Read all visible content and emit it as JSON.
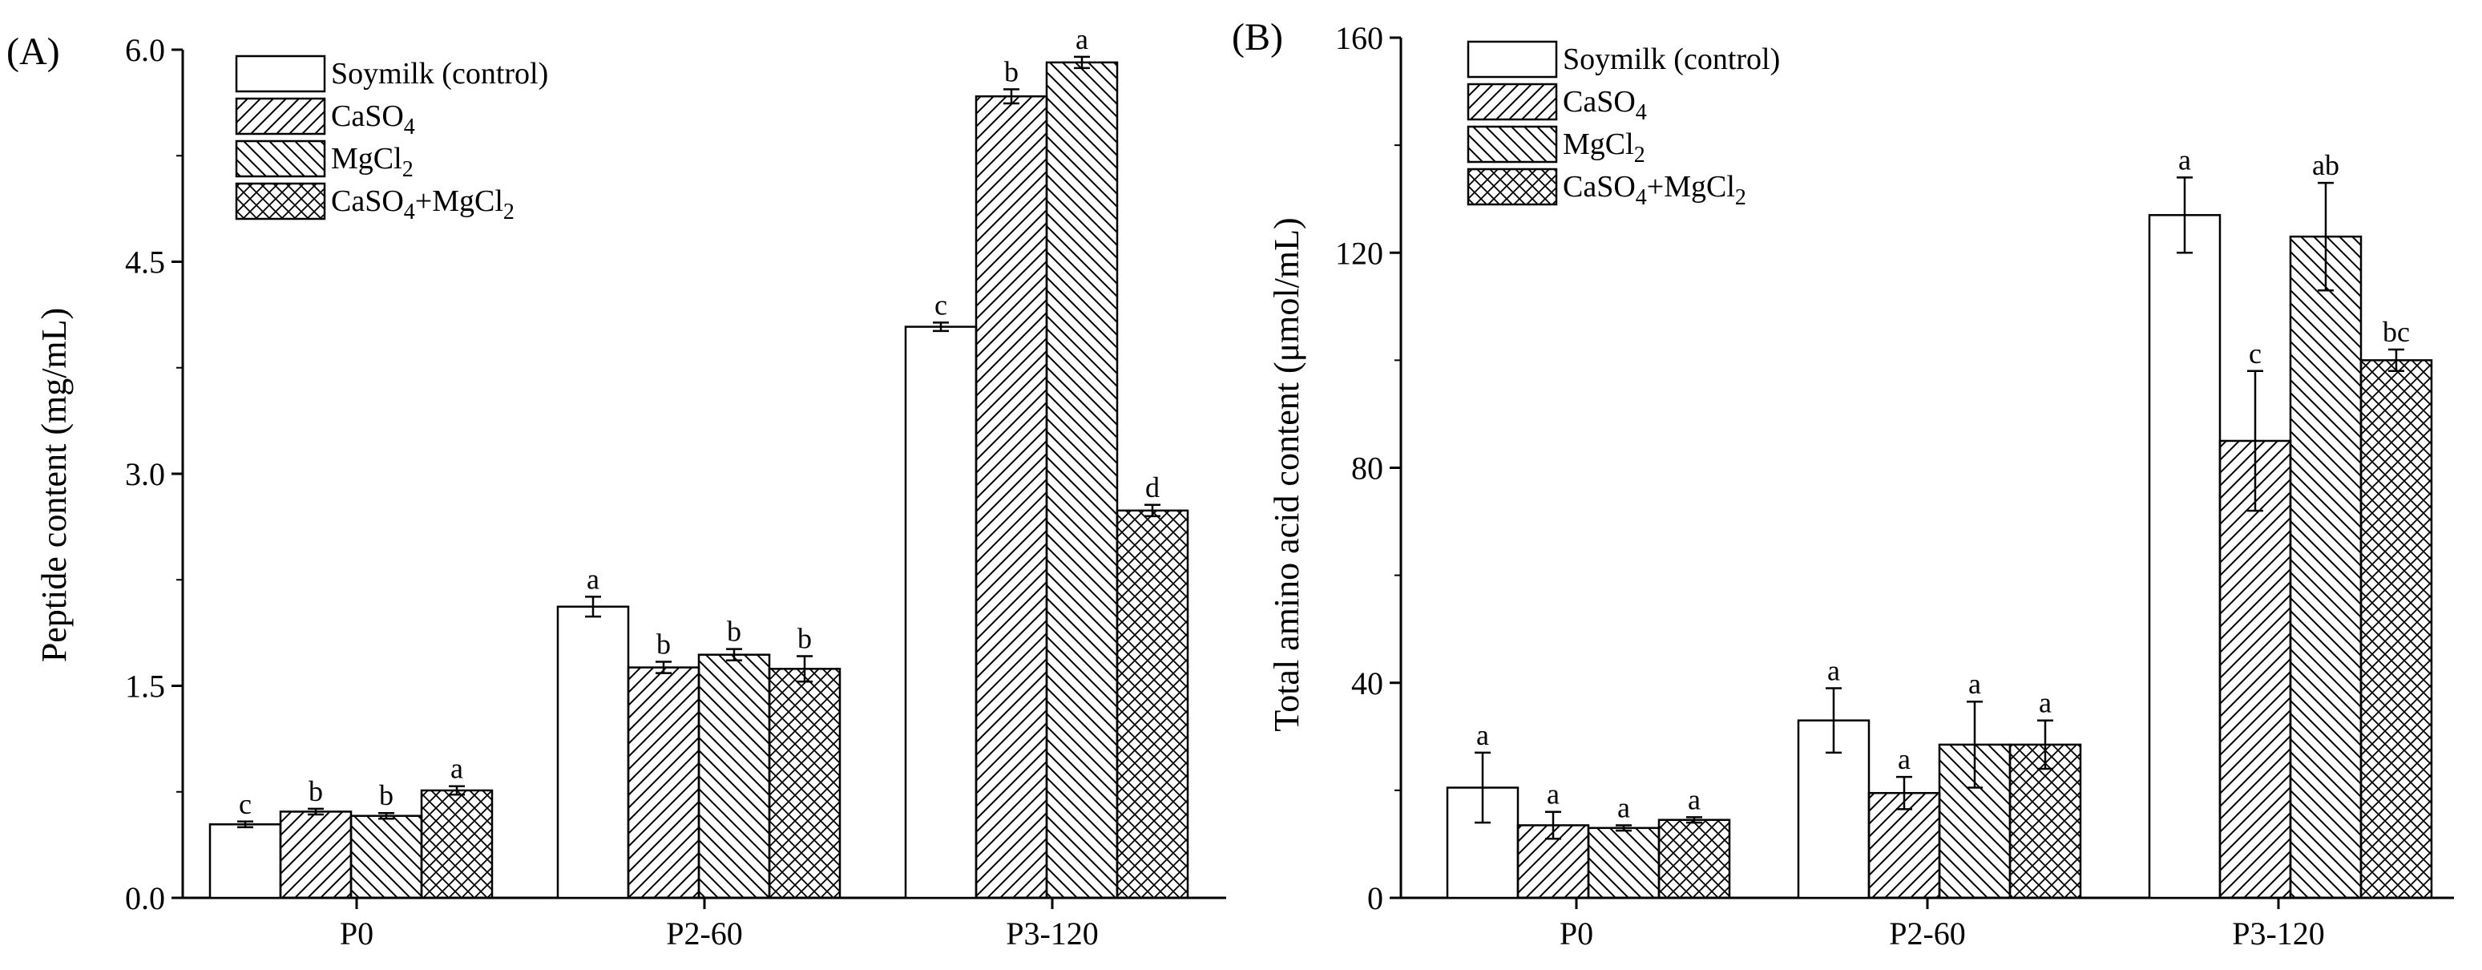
{
  "chart_data": [
    {
      "type": "bar",
      "panel_label": "(A)",
      "title": "",
      "xlabel": "",
      "ylabel": "Peptide content (mg/mL)",
      "ylim": [
        0,
        6.0
      ],
      "yticks": [
        "0.0",
        "1.5",
        "3.0",
        "4.5",
        "6.0"
      ],
      "categories": [
        "P0",
        "P2-60",
        "P3-120"
      ],
      "legend_position": "top-left",
      "series": [
        {
          "name": "Soymilk (control)",
          "name_base": "Soymilk (control)",
          "pattern": "none",
          "values": [
            0.52,
            2.06,
            4.04
          ],
          "errors": [
            0.02,
            0.07,
            0.03
          ],
          "letters": [
            "c",
            "a",
            "c"
          ]
        },
        {
          "name": "CaSO4",
          "name_base": "CaSO",
          "name_sub": "4",
          "pattern": "diag",
          "values": [
            0.61,
            1.63,
            5.67
          ],
          "errors": [
            0.02,
            0.04,
            0.05
          ],
          "letters": [
            "b",
            "b",
            "b"
          ]
        },
        {
          "name": "MgCl2",
          "name_base": "MgCl",
          "name_sub": "2",
          "pattern": "anti",
          "values": [
            0.58,
            1.72,
            5.91
          ],
          "errors": [
            0.02,
            0.04,
            0.04
          ],
          "letters": [
            "b",
            "b",
            "a"
          ]
        },
        {
          "name": "CaSO4+MgCl2",
          "name_base": "CaSO",
          "name_sub": "4",
          "name_mid": "+MgCl",
          "name_sub2": "2",
          "pattern": "cross",
          "values": [
            0.76,
            1.62,
            2.74
          ],
          "errors": [
            0.03,
            0.09,
            0.04
          ],
          "letters": [
            "a",
            "b",
            "d"
          ]
        }
      ]
    },
    {
      "type": "bar",
      "panel_label": "(B)",
      "title": "",
      "xlabel": "",
      "ylabel": "Total amino acid content (μmol/mL)",
      "ylim": [
        0,
        160
      ],
      "yticks": [
        "0",
        "40",
        "80",
        "120",
        "160"
      ],
      "categories": [
        "P0",
        "P2-60",
        "P3-120"
      ],
      "legend_position": "top-left",
      "series": [
        {
          "name": "Soymilk (control)",
          "name_base": "Soymilk (control)",
          "pattern": "none",
          "values": [
            20.5,
            33,
            127
          ],
          "errors": [
            6.5,
            6,
            7
          ],
          "letters": [
            "a",
            "a",
            "a"
          ]
        },
        {
          "name": "CaSO4",
          "name_base": "CaSO",
          "name_sub": "4",
          "pattern": "diag",
          "values": [
            13.5,
            19.5,
            85
          ],
          "errors": [
            2.5,
            3,
            13
          ],
          "letters": [
            "a",
            "a",
            "c"
          ]
        },
        {
          "name": "MgCl2",
          "name_base": "MgCl",
          "name_sub": "2",
          "pattern": "anti",
          "values": [
            13,
            28.5,
            123
          ],
          "errors": [
            0.5,
            8,
            10
          ],
          "letters": [
            "a",
            "a",
            "ab"
          ]
        },
        {
          "name": "CaSO4+MgCl2",
          "name_base": "CaSO",
          "name_sub": "4",
          "name_mid": "+MgCl",
          "name_sub2": "2",
          "pattern": "cross",
          "values": [
            14.5,
            28.5,
            100
          ],
          "errors": [
            0.5,
            4.5,
            2
          ],
          "letters": [
            "a",
            "a",
            "bc"
          ]
        }
      ]
    }
  ]
}
